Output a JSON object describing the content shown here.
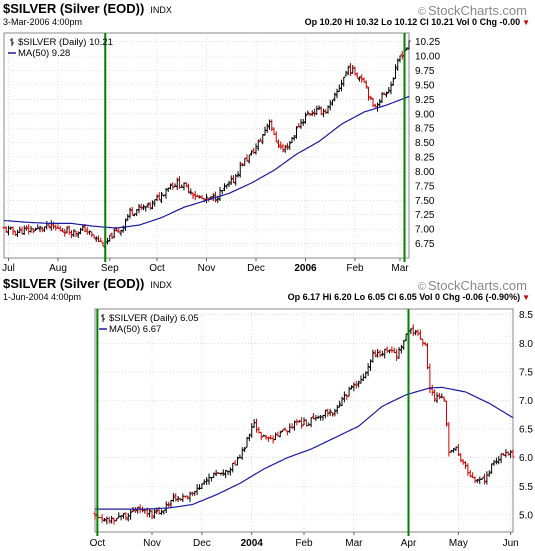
{
  "watermark": "StockCharts.com",
  "watermark_icon": "copyright-icon",
  "colors": {
    "price_up": "#000000",
    "price_down": "#cc0000",
    "ma": "#1a1aa0",
    "marker": "#008000",
    "grid": "#cccccc"
  },
  "chart_data": [
    {
      "type": "ohlc",
      "title": "$SILVER (Silver (EOD))",
      "market": "INDX",
      "date_line": "3-Mar-2006 4:00pm",
      "quote": "Op 10.20 Hi 10.32 Lo 10.12 Cl 10.21 Vol 0 Chg -0.00",
      "legend": [
        {
          "label": "$SILVER (Daily) 10.21",
          "icon": "ohlc-bar-icon"
        },
        {
          "label": "MA(50) 9.28",
          "icon": "line-icon"
        }
      ],
      "legend_position": "top-left",
      "y_ticks": [
        "6.75",
        "7.00",
        "7.25",
        "7.50",
        "7.75",
        "8.00",
        "8.25",
        "8.50",
        "8.75",
        "9.00",
        "9.25",
        "9.50",
        "9.75",
        "10.00",
        "10.25"
      ],
      "ylim": [
        6.5,
        10.4
      ],
      "x_ticks": [
        {
          "label": "Jul",
          "t": 2,
          "bold": false
        },
        {
          "label": "Aug",
          "t": 24,
          "bold": false
        },
        {
          "label": "Sep",
          "t": 47,
          "bold": false
        },
        {
          "label": "Oct",
          "t": 68,
          "bold": false
        },
        {
          "label": "Nov",
          "t": 90,
          "bold": false
        },
        {
          "label": "Dec",
          "t": 112,
          "bold": false
        },
        {
          "label": "2006",
          "t": 134,
          "bold": true
        },
        {
          "label": "Feb",
          "t": 156,
          "bold": false
        },
        {
          "label": "Mar",
          "t": 176,
          "bold": false
        }
      ],
      "x_span": [
        0,
        180
      ],
      "grid": true,
      "marker_lines_t": [
        45,
        178
      ],
      "close_points": [
        [
          0,
          7.0
        ],
        [
          5,
          6.95
        ],
        [
          10,
          6.98
        ],
        [
          15,
          7.0
        ],
        [
          20,
          7.05
        ],
        [
          24,
          7.0
        ],
        [
          28,
          6.98
        ],
        [
          32,
          6.95
        ],
        [
          36,
          7.0
        ],
        [
          40,
          6.85
        ],
        [
          45,
          6.72
        ],
        [
          48,
          6.9
        ],
        [
          52,
          7.0
        ],
        [
          56,
          7.3
        ],
        [
          60,
          7.35
        ],
        [
          65,
          7.4
        ],
        [
          70,
          7.6
        ],
        [
          73,
          7.75
        ],
        [
          77,
          7.8
        ],
        [
          82,
          7.7
        ],
        [
          86,
          7.55
        ],
        [
          90,
          7.5
        ],
        [
          94,
          7.55
        ],
        [
          98,
          7.7
        ],
        [
          102,
          7.85
        ],
        [
          106,
          8.15
        ],
        [
          110,
          8.3
        ],
        [
          114,
          8.55
        ],
        [
          118,
          8.9
        ],
        [
          120,
          8.6
        ],
        [
          124,
          8.35
        ],
        [
          127,
          8.5
        ],
        [
          131,
          8.8
        ],
        [
          135,
          9.0
        ],
        [
          139,
          9.05
        ],
        [
          143,
          9.05
        ],
        [
          146,
          9.2
        ],
        [
          150,
          9.55
        ],
        [
          153,
          9.8
        ],
        [
          156,
          9.7
        ],
        [
          160,
          9.6
        ],
        [
          164,
          9.1
        ],
        [
          168,
          9.3
        ],
        [
          172,
          9.5
        ],
        [
          176,
          10.0
        ],
        [
          180,
          10.21
        ]
      ],
      "ma_points": [
        [
          0,
          7.15
        ],
        [
          10,
          7.12
        ],
        [
          20,
          7.1
        ],
        [
          30,
          7.1
        ],
        [
          40,
          7.05
        ],
        [
          50,
          7.02
        ],
        [
          60,
          7.07
        ],
        [
          70,
          7.2
        ],
        [
          80,
          7.38
        ],
        [
          90,
          7.5
        ],
        [
          100,
          7.62
        ],
        [
          110,
          7.8
        ],
        [
          120,
          8.02
        ],
        [
          130,
          8.3
        ],
        [
          140,
          8.52
        ],
        [
          150,
          8.82
        ],
        [
          160,
          9.03
        ],
        [
          170,
          9.15
        ],
        [
          180,
          9.3
        ]
      ]
    },
    {
      "type": "ohlc",
      "title": "$SILVER (Silver (EOD))",
      "market": "INDX",
      "date_line": "1-Jun-2004 4:00pm",
      "quote": "Op 6.17 Hi 6.20 Lo 6.05 Cl 6.05 Vol 0 Chg -0.06 (-0.90%)",
      "legend": [
        {
          "label": "$SILVER (Daily) 6.05",
          "icon": "ohlc-bar-icon"
        },
        {
          "label": "MA(50) 6.67",
          "icon": "line-icon"
        }
      ],
      "legend_position": "top-left",
      "y_ticks": [
        "5.0",
        "5.5",
        "6.0",
        "6.5",
        "7.0",
        "7.5",
        "8.0",
        "8.5"
      ],
      "ylim": [
        4.7,
        8.6
      ],
      "x_ticks": [
        {
          "label": "Oct",
          "t": 0,
          "bold": false
        },
        {
          "label": "Nov",
          "t": 23,
          "bold": false
        },
        {
          "label": "Dec",
          "t": 44,
          "bold": false
        },
        {
          "label": "2004",
          "t": 65,
          "bold": true
        },
        {
          "label": "Feb",
          "t": 87,
          "bold": false
        },
        {
          "label": "Mar",
          "t": 108,
          "bold": false
        },
        {
          "label": "Apr",
          "t": 131,
          "bold": false
        },
        {
          "label": "May",
          "t": 152,
          "bold": false
        },
        {
          "label": "Jun",
          "t": 174,
          "bold": false
        }
      ],
      "x_span": [
        -1,
        175
      ],
      "grid": true,
      "marker_lines_t": [
        0,
        131
      ],
      "close_points": [
        [
          0,
          5.0
        ],
        [
          4,
          4.9
        ],
        [
          8,
          4.95
        ],
        [
          12,
          5.0
        ],
        [
          16,
          5.1
        ],
        [
          20,
          5.05
        ],
        [
          24,
          5.0
        ],
        [
          28,
          5.1
        ],
        [
          32,
          5.3
        ],
        [
          36,
          5.3
        ],
        [
          40,
          5.35
        ],
        [
          44,
          5.5
        ],
        [
          48,
          5.7
        ],
        [
          52,
          5.75
        ],
        [
          56,
          5.8
        ],
        [
          60,
          6.0
        ],
        [
          63,
          6.3
        ],
        [
          66,
          6.6
        ],
        [
          68,
          6.4
        ],
        [
          72,
          6.3
        ],
        [
          76,
          6.4
        ],
        [
          80,
          6.5
        ],
        [
          84,
          6.6
        ],
        [
          88,
          6.6
        ],
        [
          92,
          6.7
        ],
        [
          96,
          6.8
        ],
        [
          100,
          6.8
        ],
        [
          104,
          7.05
        ],
        [
          108,
          7.25
        ],
        [
          112,
          7.4
        ],
        [
          114,
          7.6
        ],
        [
          116,
          7.8
        ],
        [
          120,
          7.85
        ],
        [
          123,
          7.9
        ],
        [
          126,
          7.8
        ],
        [
          129,
          8.05
        ],
        [
          131,
          8.25
        ],
        [
          133,
          8.2
        ],
        [
          136,
          8.1
        ],
        [
          138,
          8.0
        ],
        [
          140,
          7.2
        ],
        [
          142,
          7.0
        ],
        [
          144,
          7.1
        ],
        [
          146,
          7.0
        ],
        [
          148,
          6.1
        ],
        [
          151,
          6.15
        ],
        [
          154,
          5.9
        ],
        [
          157,
          5.7
        ],
        [
          160,
          5.6
        ],
        [
          163,
          5.6
        ],
        [
          166,
          5.85
        ],
        [
          170,
          6.05
        ],
        [
          173,
          6.1
        ],
        [
          175,
          6.05
        ]
      ],
      "ma_points": [
        [
          0,
          5.1
        ],
        [
          10,
          5.1
        ],
        [
          20,
          5.1
        ],
        [
          30,
          5.12
        ],
        [
          40,
          5.18
        ],
        [
          50,
          5.35
        ],
        [
          60,
          5.55
        ],
        [
          70,
          5.8
        ],
        [
          80,
          6.0
        ],
        [
          90,
          6.15
        ],
        [
          100,
          6.35
        ],
        [
          110,
          6.55
        ],
        [
          120,
          6.9
        ],
        [
          130,
          7.1
        ],
        [
          140,
          7.22
        ],
        [
          145,
          7.23
        ],
        [
          155,
          7.15
        ],
        [
          165,
          6.95
        ],
        [
          175,
          6.7
        ]
      ]
    }
  ]
}
